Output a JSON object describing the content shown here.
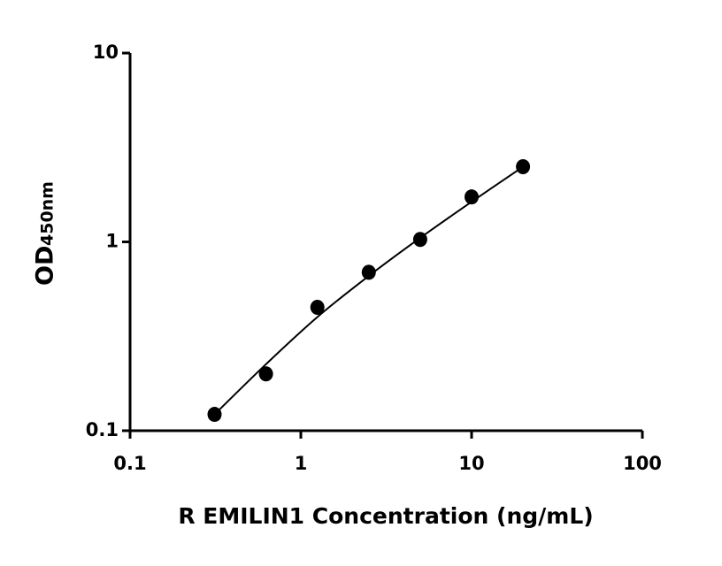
{
  "chart_data": {
    "type": "scatter",
    "xlabel": "R EMILIN1 Concentration (ng/mL)",
    "ylabel": "OD",
    "ylabel_sub": "450nm",
    "x": [
      0.3125,
      0.625,
      1.25,
      2.5,
      5,
      10,
      20
    ],
    "series": [
      {
        "color": "#000000",
        "values": [
          0.122,
          0.2,
          0.45,
          0.69,
          1.03,
          1.73,
          2.5
        ]
      }
    ],
    "fit": {
      "color": "#000000",
      "x": [
        0.3125,
        0.625,
        1.25,
        2.5,
        5,
        10,
        20
      ],
      "values": [
        0.122,
        0.225,
        0.4,
        0.66,
        1.05,
        1.63,
        2.5
      ]
    },
    "xscale": "log",
    "yscale": "log",
    "xlim": [
      0.1,
      100
    ],
    "ylim": [
      0.1,
      10
    ],
    "xticks": [
      0.1,
      1,
      10,
      100
    ],
    "yticks": [
      0.1,
      1,
      10
    ]
  }
}
